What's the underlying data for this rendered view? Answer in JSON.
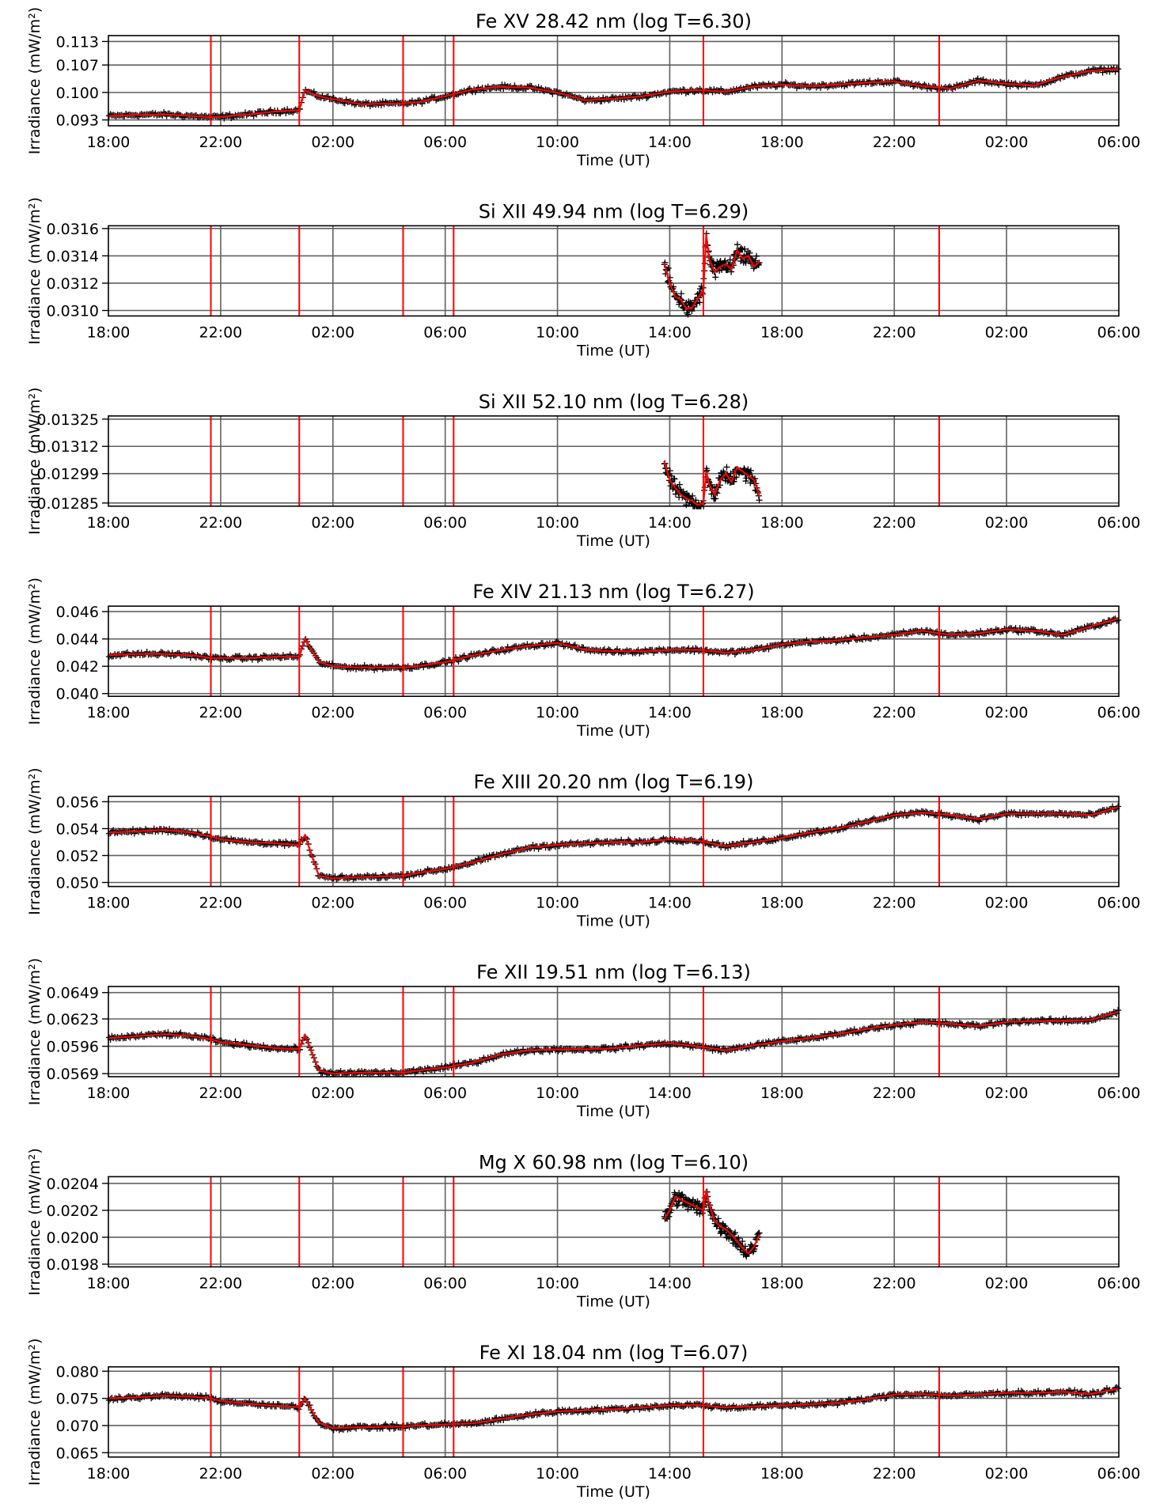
{
  "figure": {
    "ylabel": "Irradiance (mW/m²)",
    "xlabel": "Time (UT)",
    "x_tick_labels": [
      "18:00",
      "22:00",
      "02:00",
      "06:00",
      "10:00",
      "14:00",
      "18:00",
      "22:00",
      "02:00",
      "06:00"
    ],
    "x_range_hours": [
      0,
      36
    ],
    "event_lines_hours": [
      3.65,
      6.8,
      10.5,
      12.3,
      21.2,
      29.6
    ],
    "colors": {
      "data": "#000000",
      "fit": "#ff0000",
      "event_line": "#ff0000",
      "grid": "#606060",
      "axis": "#000000"
    }
  },
  "chart_data": [
    {
      "type": "scatter",
      "title": "Fe XV 28.42 nm (log T=6.30)",
      "ylim": [
        0.0915,
        0.1145
      ],
      "y_ticks": [
        0.093,
        0.1,
        0.107,
        0.113
      ],
      "y_tick_labels": [
        "0.093",
        "0.100",
        "0.107",
        "0.113"
      ],
      "series": [
        {
          "x": [
            0,
            1,
            2,
            3,
            3.65,
            4,
            5,
            6,
            6.8,
            7,
            7.5,
            8,
            9,
            10.5,
            11,
            12,
            13,
            14,
            15,
            16,
            17,
            18,
            19,
            20,
            21,
            22,
            23,
            24,
            25,
            26,
            27,
            28,
            29,
            30,
            31,
            32,
            33,
            34,
            35,
            36
          ],
          "y": [
            0.094,
            0.0943,
            0.0944,
            0.094,
            0.0937,
            0.0938,
            0.0944,
            0.0952,
            0.0955,
            0.1005,
            0.099,
            0.0983,
            0.097,
            0.0972,
            0.0975,
            0.099,
            0.1008,
            0.1014,
            0.1012,
            0.1,
            0.098,
            0.0984,
            0.099,
            0.1002,
            0.1006,
            0.1002,
            0.1015,
            0.102,
            0.1016,
            0.102,
            0.1025,
            0.1028,
            0.1016,
            0.101,
            0.103,
            0.1022,
            0.1018,
            0.104,
            0.1055,
            0.106
          ]
        }
      ]
    },
    {
      "type": "scatter",
      "title": "Si XII 49.94 nm (log T=6.29)",
      "ylim": [
        0.03096,
        0.03162
      ],
      "y_ticks": [
        0.031,
        0.0312,
        0.0314,
        0.0316
      ],
      "y_tick_labels": [
        "0.0310",
        "0.0312",
        "0.0314",
        "0.0316"
      ],
      "series": [
        {
          "x": [
            19.8,
            20.0,
            20.2,
            20.4,
            20.6,
            20.8,
            21.0,
            21.2,
            21.3,
            21.4,
            21.6,
            21.8,
            22.0,
            22.2,
            22.4,
            22.6,
            22.8,
            23.0,
            23.2
          ],
          "y": [
            0.03135,
            0.0312,
            0.0311,
            0.03108,
            0.03101,
            0.03102,
            0.03109,
            0.03115,
            0.03156,
            0.03138,
            0.03128,
            0.03132,
            0.03134,
            0.0313,
            0.03144,
            0.03138,
            0.0314,
            0.03132,
            0.03136
          ]
        }
      ]
    },
    {
      "type": "scatter",
      "title": "Si XII 52.10 nm (log T=6.28)",
      "ylim": [
        0.012835,
        0.013265
      ],
      "y_ticks": [
        0.01285,
        0.01299,
        0.01312,
        0.01325
      ],
      "y_tick_labels": [
        "0.01285",
        "0.01299",
        "0.01312",
        "0.01325"
      ],
      "series": [
        {
          "x": [
            19.8,
            20.0,
            20.2,
            20.4,
            20.6,
            20.8,
            21.0,
            21.2,
            21.3,
            21.4,
            21.6,
            21.8,
            22.0,
            22.2,
            22.4,
            22.6,
            22.8,
            23.0,
            23.2
          ],
          "y": [
            0.01305,
            0.01296,
            0.01292,
            0.01289,
            0.01287,
            0.01286,
            0.01284,
            0.01285,
            0.013,
            0.01294,
            0.01289,
            0.01296,
            0.01299,
            0.01295,
            0.01302,
            0.013,
            0.01298,
            0.01296,
            0.01288
          ]
        }
      ]
    },
    {
      "type": "scatter",
      "title": "Fe XIV 21.13 nm (log T=6.27)",
      "ylim": [
        0.0398,
        0.0464
      ],
      "y_ticks": [
        0.04,
        0.042,
        0.044,
        0.046
      ],
      "y_tick_labels": [
        "0.040",
        "0.042",
        "0.044",
        "0.046"
      ],
      "series": [
        {
          "x": [
            0,
            1,
            2,
            3,
            3.65,
            4,
            5,
            6,
            6.8,
            7,
            7.5,
            8,
            9,
            10.5,
            11,
            12,
            13,
            14,
            15,
            16,
            17,
            18,
            19,
            20,
            21,
            22,
            23,
            24,
            25,
            26,
            27,
            28,
            29,
            30,
            31,
            32,
            33,
            34,
            35,
            36
          ],
          "y": [
            0.0428,
            0.0429,
            0.0429,
            0.0428,
            0.0426,
            0.0426,
            0.0426,
            0.0427,
            0.0427,
            0.044,
            0.0423,
            0.042,
            0.0419,
            0.0419,
            0.042,
            0.0423,
            0.0428,
            0.0432,
            0.0435,
            0.0437,
            0.0432,
            0.0431,
            0.0431,
            0.0432,
            0.0432,
            0.043,
            0.0432,
            0.0436,
            0.0438,
            0.0439,
            0.0441,
            0.0443,
            0.0446,
            0.0443,
            0.0444,
            0.0447,
            0.0446,
            0.0443,
            0.0449,
            0.0455
          ]
        }
      ]
    },
    {
      "type": "scatter",
      "title": "Fe XIII 20.20 nm (log T=6.19)",
      "ylim": [
        0.0497,
        0.0564
      ],
      "y_ticks": [
        0.05,
        0.052,
        0.054,
        0.056
      ],
      "y_tick_labels": [
        "0.050",
        "0.052",
        "0.054",
        "0.056"
      ],
      "series": [
        {
          "x": [
            0,
            1,
            2,
            3,
            3.65,
            4,
            5,
            6,
            6.8,
            7,
            7.5,
            8,
            9,
            10.5,
            11,
            12,
            13,
            14,
            15,
            16,
            17,
            18,
            19,
            20,
            21,
            22,
            23,
            24,
            25,
            26,
            27,
            28,
            29,
            30,
            31,
            32,
            33,
            34,
            35,
            36
          ],
          "y": [
            0.0537,
            0.0538,
            0.0539,
            0.0537,
            0.0534,
            0.0532,
            0.053,
            0.0529,
            0.0528,
            0.0535,
            0.0505,
            0.0503,
            0.0504,
            0.0505,
            0.0507,
            0.051,
            0.0515,
            0.0521,
            0.0526,
            0.0528,
            0.0529,
            0.053,
            0.053,
            0.0532,
            0.0531,
            0.0527,
            0.053,
            0.0533,
            0.0537,
            0.054,
            0.0545,
            0.055,
            0.0552,
            0.055,
            0.0547,
            0.0551,
            0.0551,
            0.0551,
            0.055,
            0.0556
          ]
        }
      ]
    },
    {
      "type": "scatter",
      "title": "Fe XII 19.51 nm (log T=6.13)",
      "ylim": [
        0.0566,
        0.0655
      ],
      "y_ticks": [
        0.0569,
        0.0596,
        0.0623,
        0.0649
      ],
      "y_tick_labels": [
        "0.0569",
        "0.0596",
        "0.0623",
        "0.0649"
      ],
      "series": [
        {
          "x": [
            0,
            1,
            2,
            3,
            3.65,
            4,
            5,
            6,
            6.8,
            7,
            7.5,
            8,
            9,
            10.5,
            11,
            12,
            13,
            14,
            15,
            16,
            17,
            18,
            19,
            20,
            21,
            22,
            23,
            24,
            25,
            26,
            27,
            28,
            29,
            30,
            31,
            32,
            33,
            34,
            35,
            36
          ],
          "y": [
            0.0604,
            0.0606,
            0.0608,
            0.0606,
            0.0603,
            0.06,
            0.0597,
            0.0594,
            0.0593,
            0.0607,
            0.0572,
            0.0569,
            0.057,
            0.057,
            0.0572,
            0.0575,
            0.058,
            0.0588,
            0.0592,
            0.0593,
            0.0593,
            0.0594,
            0.0597,
            0.0599,
            0.0596,
            0.0592,
            0.0597,
            0.0601,
            0.0604,
            0.0608,
            0.0613,
            0.0617,
            0.062,
            0.0618,
            0.0616,
            0.062,
            0.0621,
            0.0621,
            0.0622,
            0.063
          ]
        }
      ]
    },
    {
      "type": "scatter",
      "title": "Mg X 60.98 nm (log T=6.10)",
      "ylim": [
        0.01978,
        0.02045
      ],
      "y_ticks": [
        0.0198,
        0.02,
        0.0202,
        0.0204
      ],
      "y_tick_labels": [
        "0.0198",
        "0.0200",
        "0.0202",
        "0.0204"
      ],
      "series": [
        {
          "x": [
            19.8,
            20.0,
            20.2,
            20.4,
            20.6,
            20.8,
            21.0,
            21.2,
            21.3,
            21.4,
            21.6,
            21.8,
            22.0,
            22.2,
            22.4,
            22.6,
            22.8,
            23.0,
            23.2
          ],
          "y": [
            0.02013,
            0.0202,
            0.0203,
            0.02028,
            0.02026,
            0.02024,
            0.02022,
            0.0202,
            0.02035,
            0.02025,
            0.02012,
            0.02008,
            0.02006,
            0.02002,
            0.01997,
            0.01992,
            0.01988,
            0.01993,
            0.02002
          ]
        }
      ]
    },
    {
      "type": "scatter",
      "title": "Fe XI 18.04 nm (log T=6.07)",
      "ylim": [
        0.0642,
        0.0808
      ],
      "y_ticks": [
        0.065,
        0.07,
        0.075,
        0.08
      ],
      "y_tick_labels": [
        "0.065",
        "0.070",
        "0.075",
        "0.080"
      ],
      "series": [
        {
          "x": [
            0,
            1,
            2,
            3,
            3.65,
            4,
            5,
            6,
            6.8,
            7,
            7.5,
            8,
            9,
            10.5,
            11,
            12,
            13,
            14,
            15,
            16,
            17,
            18,
            19,
            20,
            21,
            22,
            23,
            24,
            25,
            26,
            27,
            28,
            29,
            30,
            31,
            32,
            33,
            34,
            35,
            36
          ],
          "y": [
            0.075,
            0.0752,
            0.0755,
            0.0753,
            0.075,
            0.0745,
            0.074,
            0.0736,
            0.0734,
            0.075,
            0.0705,
            0.0695,
            0.0697,
            0.0698,
            0.07,
            0.0702,
            0.0704,
            0.0712,
            0.072,
            0.0726,
            0.0728,
            0.073,
            0.0733,
            0.0737,
            0.0738,
            0.0733,
            0.0735,
            0.0737,
            0.0739,
            0.0742,
            0.0748,
            0.0757,
            0.0758,
            0.0755,
            0.0757,
            0.076,
            0.076,
            0.0762,
            0.0758,
            0.0768
          ]
        }
      ]
    }
  ]
}
